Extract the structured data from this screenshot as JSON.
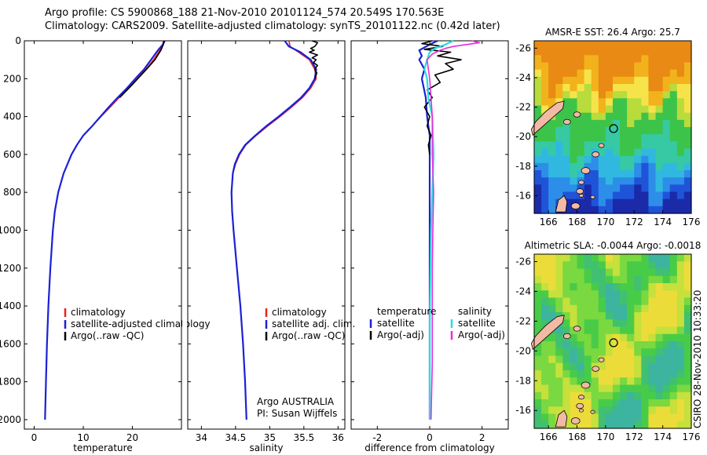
{
  "header": {
    "line1": "Argo profile: CS 5900868_188 21-Nov-2010 20101124_574 20.549S 170.563E",
    "line2": "Climatology: CARS2009. Satellite-adjusted climatology: synTS_20101122.nc (0.42d later)"
  },
  "colors": {
    "red": "#e8231c",
    "blue": "#1a22d6",
    "black": "#000000",
    "cyan": "#27dede",
    "magenta": "#ee2ad8"
  },
  "chart_data": [
    {
      "type": "line",
      "panel": "temperature",
      "xlabel": "temperature",
      "ylabel": "",
      "xlim": [
        -2,
        30
      ],
      "ylim": [
        2050,
        0
      ],
      "xticks": [
        "0",
        "10",
        "20"
      ],
      "yticks": [
        "0",
        "200",
        "400",
        "600",
        "800",
        "1000",
        "1200",
        "1400",
        "1600",
        "1800",
        "2000"
      ],
      "legend": [
        "climatology",
        "satellite-adjusted climatology",
        "Argo(..raw -QC)"
      ],
      "series": [
        {
          "name": "climatology",
          "color": "red",
          "depth": [
            0,
            20,
            50,
            100,
            150,
            200,
            250,
            300,
            350,
            400,
            450,
            500,
            550,
            600,
            700,
            800,
            900,
            1000,
            1200,
            1400,
            1600,
            1800,
            2000
          ],
          "values": [
            26.3,
            26.2,
            25.6,
            24.3,
            22.8,
            21.0,
            19.2,
            17.3,
            15.5,
            13.6,
            11.8,
            10.0,
            8.7,
            7.6,
            6.0,
            4.9,
            4.2,
            3.8,
            3.3,
            2.9,
            2.6,
            2.4,
            2.2
          ]
        },
        {
          "name": "satellite-adjusted climatology",
          "color": "blue",
          "depth": [
            0,
            20,
            50,
            100,
            150,
            200,
            250,
            300,
            350,
            400,
            450,
            500,
            550,
            600,
            700,
            800,
            900,
            1000,
            1200,
            1400,
            1600,
            1800,
            2000
          ],
          "values": [
            26.6,
            26.2,
            25.2,
            23.8,
            22.4,
            20.6,
            18.9,
            17.0,
            15.2,
            13.5,
            11.8,
            10.0,
            8.7,
            7.6,
            6.0,
            4.9,
            4.2,
            3.8,
            3.3,
            2.9,
            2.6,
            2.4,
            2.2
          ]
        },
        {
          "name": "Argo(..raw -QC)",
          "color": "black",
          "depth": [
            0,
            20,
            50,
            100,
            150,
            200,
            250,
            300
          ],
          "values": [
            26.5,
            26.3,
            25.8,
            24.6,
            22.9,
            21.1,
            19.3,
            17.4
          ]
        }
      ]
    },
    {
      "type": "line",
      "panel": "salinity",
      "xlabel": "salinity",
      "ylabel": "",
      "xlim": [
        33.8,
        36.1
      ],
      "ylim": [
        2050,
        0
      ],
      "xticks": [
        "34",
        "34.5",
        "35",
        "35.5",
        "36"
      ],
      "legend": [
        "climatology",
        "satellite adj. clim.",
        "Argo(..raw -QC)"
      ],
      "annotation": [
        "Argo AUSTRALIA",
        "PI: Susan Wijffels"
      ],
      "series": [
        {
          "name": "climatology",
          "color": "red",
          "depth": [
            0,
            30,
            60,
            100,
            150,
            200,
            250,
            300,
            350,
            400,
            450,
            500,
            550,
            600,
            650,
            700,
            800,
            900,
            1000,
            1200,
            1400,
            1600,
            1800,
            2000
          ],
          "values": [
            35.28,
            35.3,
            35.42,
            35.58,
            35.66,
            35.68,
            35.6,
            35.48,
            35.32,
            35.15,
            34.97,
            34.8,
            34.65,
            34.56,
            34.5,
            34.46,
            34.44,
            34.45,
            34.47,
            34.52,
            34.57,
            34.61,
            34.64,
            34.66
          ]
        },
        {
          "name": "satellite adj. clim.",
          "color": "blue",
          "depth": [
            0,
            30,
            60,
            100,
            150,
            200,
            250,
            300,
            350,
            400,
            450,
            500,
            550,
            600,
            650,
            700,
            800,
            900,
            1000,
            1200,
            1400,
            1600,
            1800,
            2000
          ],
          "values": [
            35.22,
            35.28,
            35.45,
            35.6,
            35.68,
            35.66,
            35.58,
            35.46,
            35.3,
            35.13,
            34.95,
            34.79,
            34.64,
            34.55,
            34.49,
            34.46,
            34.44,
            34.45,
            34.47,
            34.52,
            34.57,
            34.61,
            34.64,
            34.66
          ]
        },
        {
          "name": "Argo(..raw -QC)",
          "color": "black",
          "depth": [
            0,
            10,
            20,
            30,
            40,
            50,
            60,
            75,
            90,
            100,
            115,
            130,
            150,
            170,
            200
          ],
          "values": [
            35.62,
            35.7,
            35.68,
            35.66,
            35.6,
            35.65,
            35.58,
            35.7,
            35.62,
            35.68,
            35.64,
            35.7,
            35.66,
            35.69,
            35.66
          ]
        }
      ]
    },
    {
      "type": "line",
      "panel": "difference",
      "xlabel": "difference from climatology",
      "xlim": [
        -3,
        3
      ],
      "ylim": [
        2050,
        0
      ],
      "xticks": [
        "-2",
        "0",
        "2"
      ],
      "legend_left_title": "temperature",
      "legend_left": [
        "satellite",
        "Argo(-adj)"
      ],
      "legend_right_title": "salinity",
      "legend_right": [
        "satellite",
        "Argo(-adj)"
      ],
      "series": [
        {
          "name": "temperature satellite",
          "color": "blue",
          "depth": [
            0,
            20,
            50,
            80,
            100,
            150,
            200,
            300,
            400,
            500,
            600,
            800,
            1000,
            1500,
            2000
          ],
          "values": [
            0.3,
            0.0,
            -0.4,
            -0.3,
            -0.4,
            -0.2,
            -0.3,
            -0.15,
            -0.1,
            0,
            0,
            0,
            0,
            0,
            0
          ]
        },
        {
          "name": "temperature Argo(-adj)",
          "color": "black",
          "depth": [
            0,
            15,
            30,
            45,
            60,
            80,
            100,
            120,
            150,
            180,
            220,
            260,
            300,
            350,
            400,
            450,
            500,
            550,
            600
          ],
          "values": [
            0.1,
            -0.3,
            0.5,
            -0.2,
            0.8,
            0.3,
            1.2,
            0.6,
            0.9,
            0.2,
            0.4,
            -0.1,
            0.1,
            -0.2,
            0.0,
            -0.1,
            0.05,
            -0.05,
            0.0
          ]
        },
        {
          "name": "salinity satellite",
          "color": "cyan",
          "depth": [
            0,
            20,
            40,
            60,
            100,
            150,
            200,
            300,
            400,
            600,
            800,
            1000,
            1500,
            2000
          ],
          "values": [
            0.9,
            0.6,
            0.2,
            0.0,
            -0.1,
            -0.2,
            -0.1,
            -0.05,
            0.1,
            0.15,
            0.1,
            0.05,
            0.0,
            0.0
          ]
        },
        {
          "name": "salinity Argo(-adj)",
          "color": "magenta",
          "depth": [
            0,
            10,
            20,
            30,
            40,
            50,
            70,
            100,
            150,
            200,
            300,
            400,
            600,
            800,
            1000,
            1200,
            1500,
            1700,
            2000
          ],
          "values": [
            1.6,
            1.9,
            1.4,
            0.9,
            0.6,
            0.4,
            0.1,
            -0.1,
            -0.05,
            0.0,
            0.05,
            0.1,
            0.1,
            0.15,
            0.12,
            0.1,
            0.1,
            0.1,
            0.05
          ]
        }
      ]
    },
    {
      "type": "heatmap",
      "panel": "sst-map",
      "title": "AMSR-E SST: 26.4 Argo: 25.7",
      "xlim": [
        165,
        176
      ],
      "ylim": [
        -26.5,
        -14.8
      ],
      "xticks": [
        "166",
        "168",
        "170",
        "172",
        "174",
        "176"
      ],
      "yticks": [
        "-16",
        "-18",
        "-20",
        "-22",
        "-24",
        "-26"
      ],
      "marker": {
        "lon": 170.563,
        "lat": -20.549
      }
    },
    {
      "type": "heatmap",
      "panel": "sla-map",
      "title": "Altimetric SLA: -0.0044 Argo: -0.0018",
      "xlim": [
        165,
        176
      ],
      "ylim": [
        -26.5,
        -14.8
      ],
      "xticks": [
        "166",
        "168",
        "170",
        "172",
        "174",
        "176"
      ],
      "yticks": [
        "-16",
        "-18",
        "-20",
        "-22",
        "-24",
        "-26"
      ],
      "marker": {
        "lon": 170.563,
        "lat": -20.549
      }
    }
  ],
  "footer": {
    "stamp": "CSIRO 28-Nov-2010 10:33:20"
  }
}
